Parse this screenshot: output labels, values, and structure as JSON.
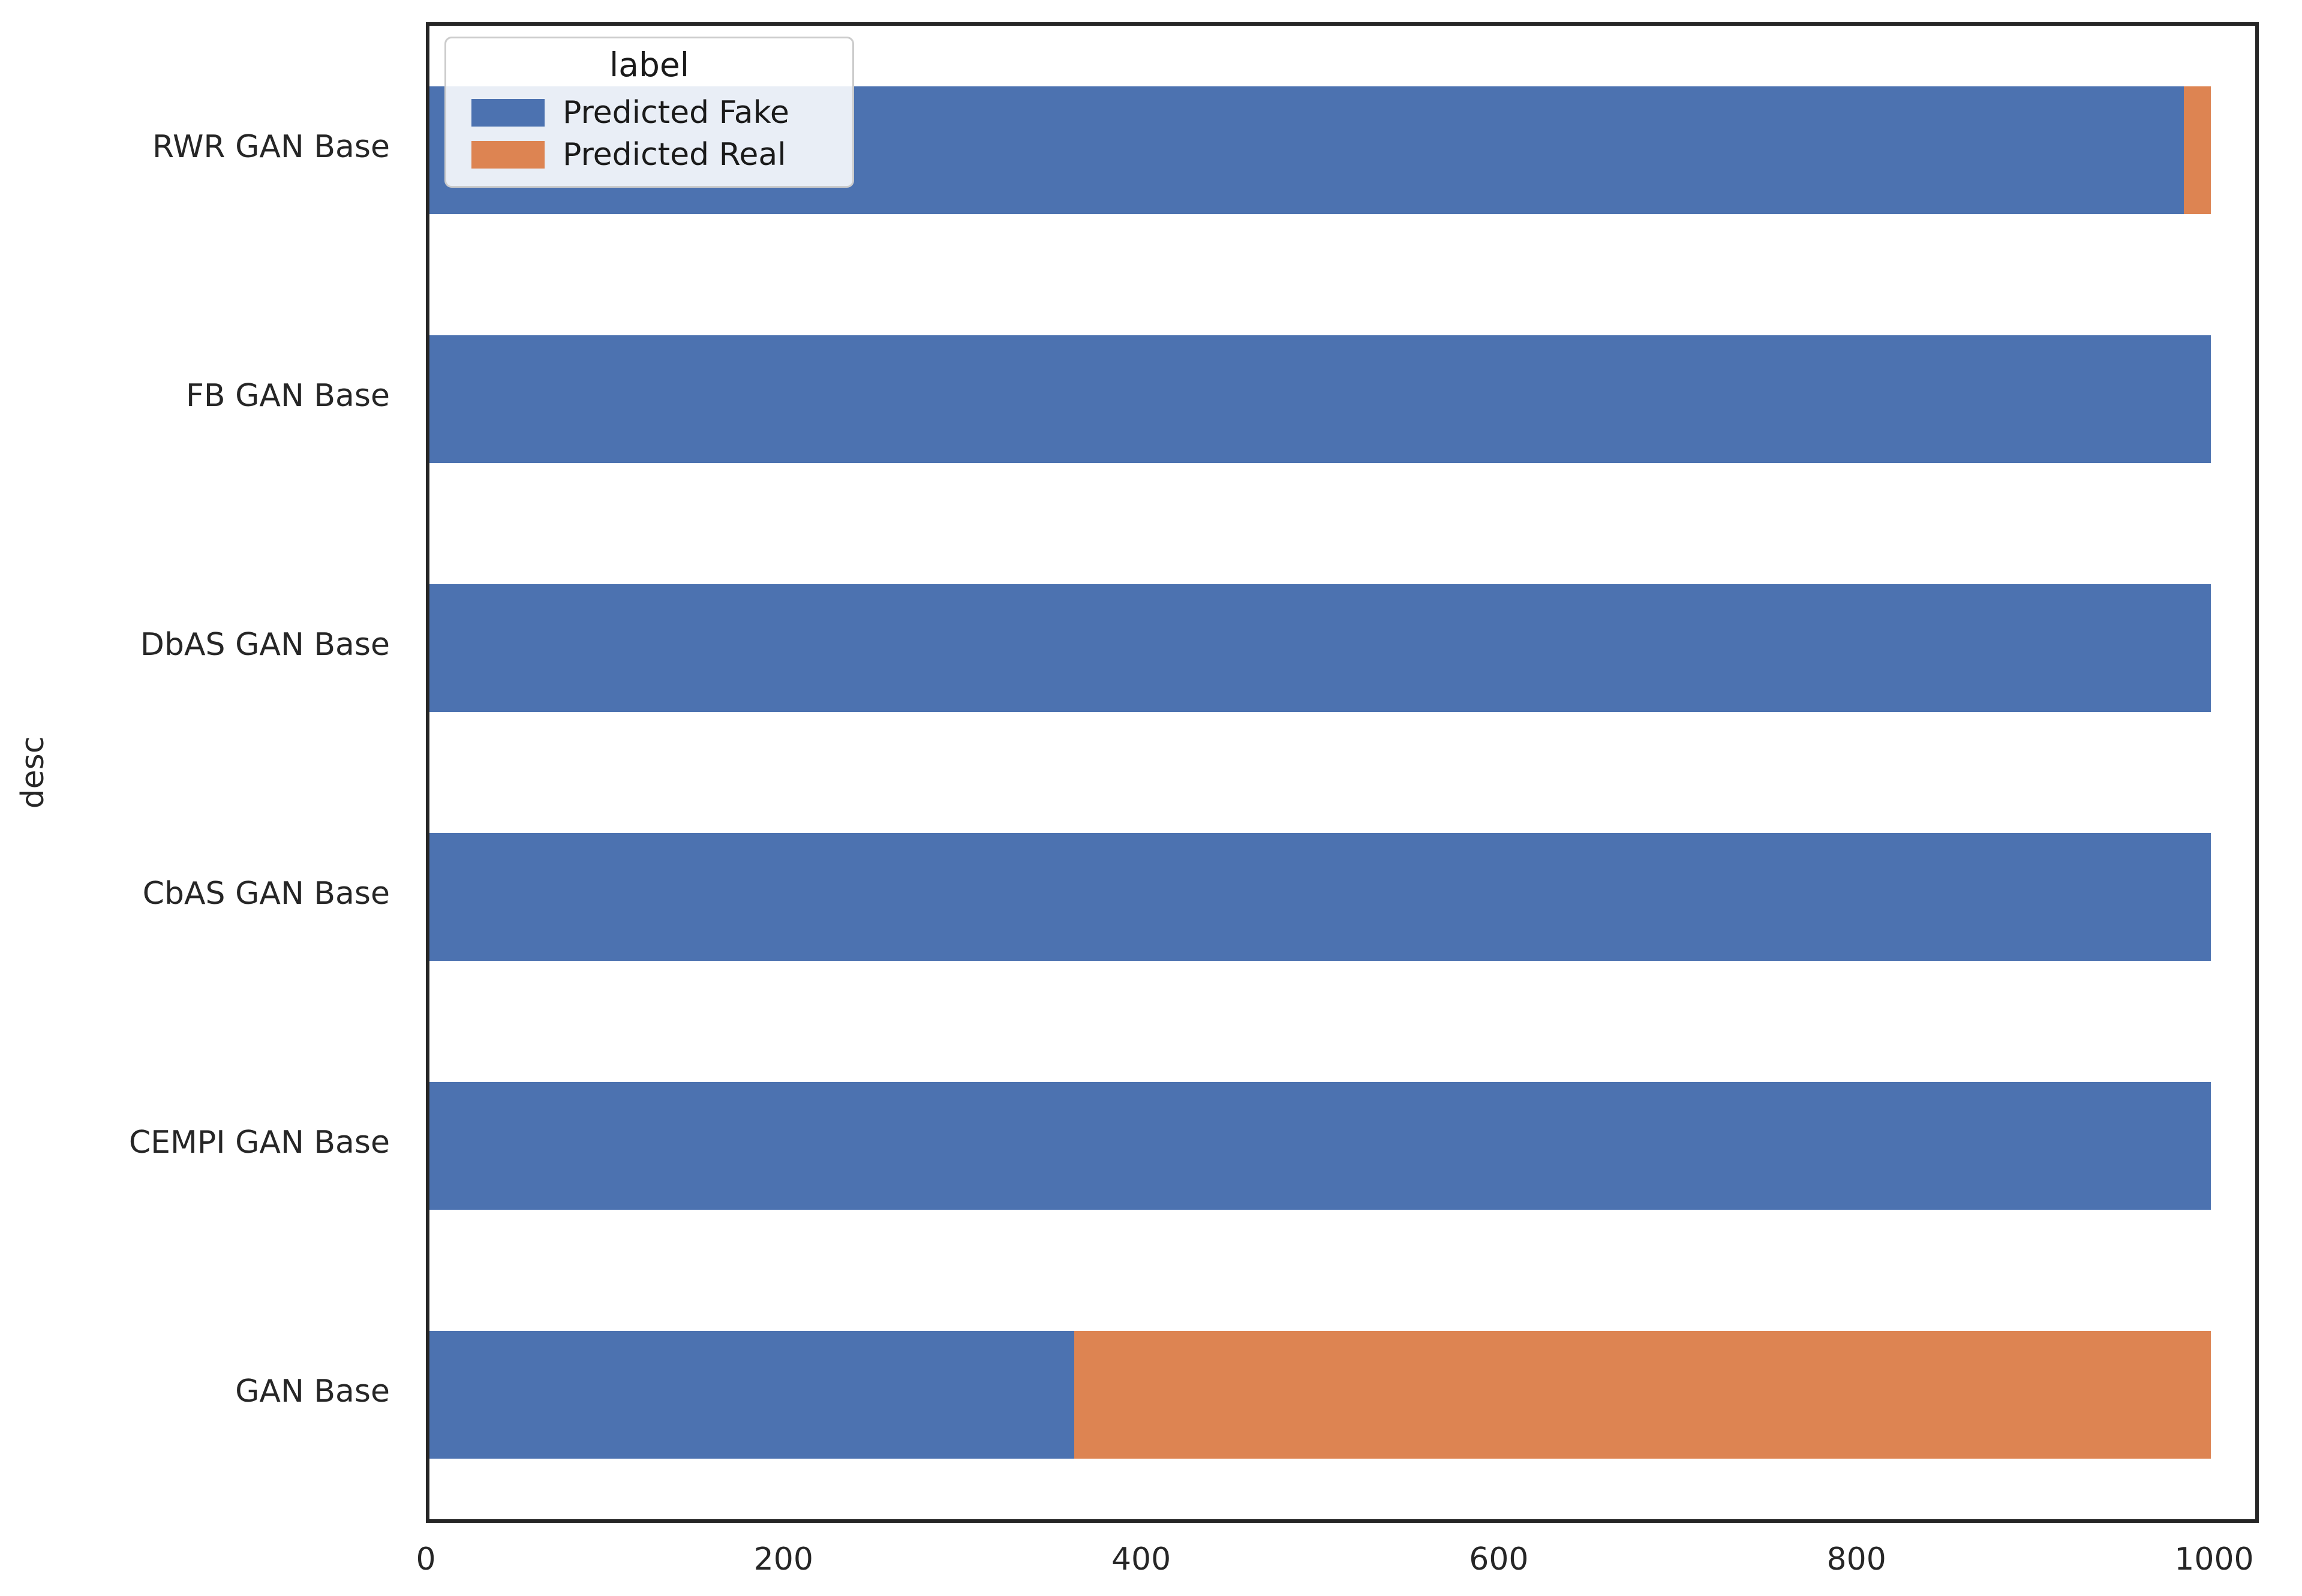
{
  "chart_data": {
    "type": "bar",
    "orientation": "horizontal",
    "stacked": true,
    "title": "",
    "xlabel": "",
    "ylabel": "desc",
    "categories": [
      "RWR GAN Base",
      "FB GAN Base",
      "DbAS GAN Base",
      "CbAS GAN Base",
      "CEMPI GAN Base",
      "GAN Base"
    ],
    "series": [
      {
        "name": "Predicted Fake",
        "color": "#4C72B0",
        "values": [
          985,
          1000,
          1000,
          1000,
          1000,
          362
        ]
      },
      {
        "name": "Predicted Real",
        "color": "#DD8452",
        "values": [
          15,
          0,
          0,
          0,
          0,
          638
        ]
      }
    ],
    "xlim": [
      0,
      1025
    ],
    "xticks": [
      0,
      200,
      400,
      600,
      800,
      1000
    ],
    "grid": false,
    "legend": {
      "title": "label",
      "position": "upper-left",
      "entries": [
        "Predicted Fake",
        "Predicted Real"
      ]
    }
  },
  "colors": {
    "fake": "#4C72B0",
    "real": "#DD8452",
    "axis": "#262626",
    "legend_border": "#cccccc",
    "background": "#ffffff"
  }
}
